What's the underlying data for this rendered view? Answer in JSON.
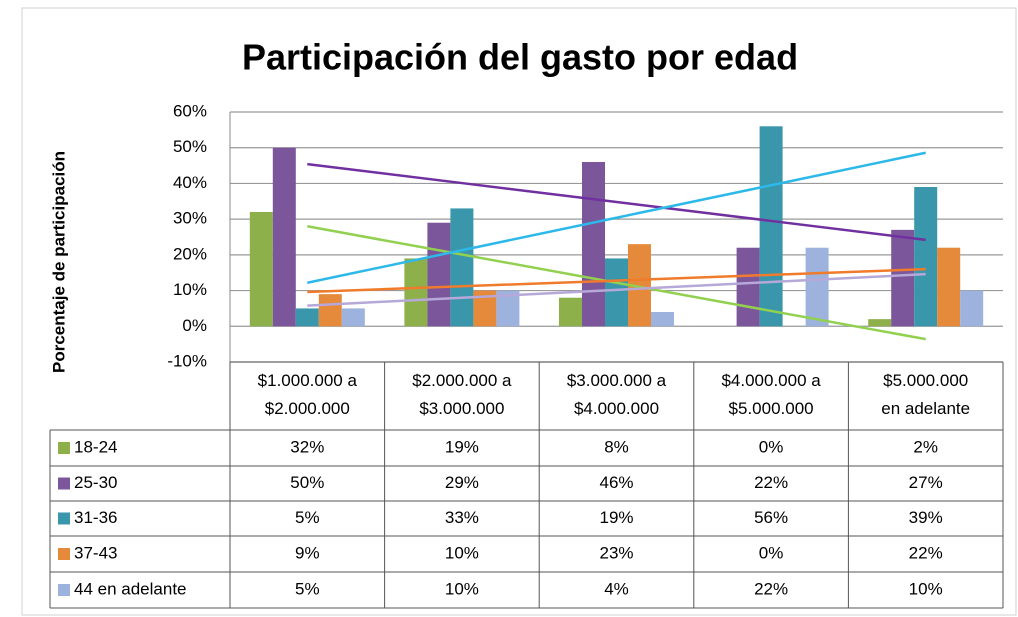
{
  "chart_data": {
    "type": "bar",
    "title": "Participación del gasto por edad",
    "ylabel": "Porcentaje de participación",
    "categories": [
      "$1.000.000 a\n$2.000.000",
      "$2.000.000 a\n$3.000.000",
      "$3.000.000 a\n$4.000.000",
      "$4.000.000 a\n$5.000.000",
      "$5.000.000\nen adelante"
    ],
    "series": [
      {
        "name": "18-24",
        "color": "#8db04b",
        "trend_color": "#92d050",
        "values": [
          32,
          19,
          8,
          0,
          2
        ],
        "value_labels": [
          "32%",
          "19%",
          "8%",
          "0%",
          "2%"
        ]
      },
      {
        "name": "25-30",
        "color": "#7b569b",
        "trend_color": "#7030a0",
        "values": [
          50,
          29,
          46,
          22,
          27
        ],
        "value_labels": [
          "50%",
          "29%",
          "46%",
          "22%",
          "27%"
        ]
      },
      {
        "name": "31-36",
        "color": "#3a97ab",
        "trend_color": "#2db8ea",
        "values": [
          5,
          33,
          19,
          56,
          39
        ],
        "value_labels": [
          "5%",
          "33%",
          "19%",
          "56%",
          "39%"
        ]
      },
      {
        "name": "37-43",
        "color": "#e5893b",
        "trend_color": "#f07b2c",
        "values": [
          9,
          10,
          23,
          0,
          22
        ],
        "value_labels": [
          "9%",
          "10%",
          "23%",
          "0%",
          "22%"
        ]
      },
      {
        "name": "44 en adelante",
        "color": "#9db2dd",
        "trend_color": "#b6a8d8",
        "values": [
          5,
          10,
          4,
          22,
          10
        ],
        "value_labels": [
          "5%",
          "10%",
          "4%",
          "22%",
          "10%"
        ]
      }
    ],
    "ylim": [
      -10,
      60
    ],
    "yticks": [
      {
        "value": -10,
        "label": "-10%"
      },
      {
        "value": 0,
        "label": "0%"
      },
      {
        "value": 10,
        "label": "10%"
      },
      {
        "value": 20,
        "label": "20%"
      },
      {
        "value": 30,
        "label": "30%"
      },
      {
        "value": 40,
        "label": "40%"
      },
      {
        "value": 50,
        "label": "50%"
      },
      {
        "value": 60,
        "label": "60%"
      }
    ],
    "grid": true,
    "trendline": true
  }
}
